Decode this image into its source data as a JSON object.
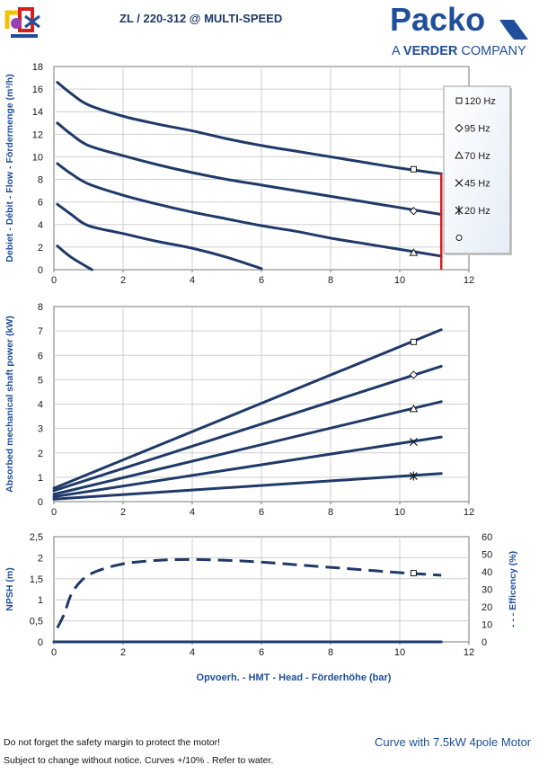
{
  "header": {
    "title": "ZL   / 220-312 @ MULTI-SPEED",
    "brand": "Packo",
    "brand_sub_prefix": "A ",
    "brand_sub_bold": "VERDER",
    "brand_sub_suffix": " COMPANY",
    "brand_color": "#1f4e9a"
  },
  "legend": {
    "items": [
      {
        "label": "120 Hz",
        "marker": "square"
      },
      {
        "label": "95 Hz",
        "marker": "diamond"
      },
      {
        "label": "70 Hz",
        "marker": "triangle"
      },
      {
        "label": "45 Hz",
        "marker": "x"
      },
      {
        "label": "20 Hz",
        "marker": "star"
      },
      {
        "label": "",
        "marker": "circle"
      }
    ]
  },
  "footer": {
    "line1": "Do not forget the safety margin to protect the motor!",
    "line2": "Subject to change without notice. Curves +/10% . Refer to water.",
    "motor": "Curve with 7.5kW 4pole Motor"
  },
  "colors": {
    "curve": "#1f3a68",
    "limit": "#d42020",
    "axis_label": "#1f4e9a",
    "legend_bg": "#e6edf7"
  },
  "chart_data": [
    {
      "type": "line",
      "title": "",
      "xlabel": "",
      "ylabel": "Debiet - Débit - Flow - Fördermenge (m³/h)",
      "xlim": [
        0,
        12
      ],
      "ylim": [
        0,
        18
      ],
      "xticks": [
        "0",
        "2",
        "4",
        "6",
        "8",
        "10",
        "12"
      ],
      "yticks": [
        "0",
        "2",
        "4",
        "6",
        "8",
        "10",
        "12",
        "14",
        "16",
        "18"
      ],
      "limit_line_x": 11.2,
      "grid": true,
      "legend_position": "right",
      "series": [
        {
          "name": "120 Hz",
          "marker": "square",
          "marker_at": [
            10.4,
            8.9
          ],
          "points": [
            [
              0.1,
              16.6
            ],
            [
              0.5,
              15.6
            ],
            [
              1,
              14.6
            ],
            [
              2,
              13.6
            ],
            [
              3,
              12.9
            ],
            [
              4,
              12.3
            ],
            [
              5,
              11.6
            ],
            [
              6,
              11.0
            ],
            [
              7,
              10.5
            ],
            [
              8,
              10.0
            ],
            [
              9,
              9.5
            ],
            [
              10,
              9.0
            ],
            [
              11.2,
              8.5
            ]
          ]
        },
        {
          "name": "95 Hz",
          "marker": "diamond",
          "marker_at": [
            10.4,
            5.2
          ],
          "points": [
            [
              0.1,
              13.0
            ],
            [
              0.5,
              12.0
            ],
            [
              1,
              11.0
            ],
            [
              2,
              10.1
            ],
            [
              3,
              9.3
            ],
            [
              4,
              8.6
            ],
            [
              5,
              8.0
            ],
            [
              6,
              7.5
            ],
            [
              7,
              7.0
            ],
            [
              8,
              6.5
            ],
            [
              9,
              6.0
            ],
            [
              10,
              5.5
            ],
            [
              11.2,
              4.9
            ]
          ]
        },
        {
          "name": "70 Hz",
          "marker": "triangle",
          "marker_at": [
            10.4,
            1.5
          ],
          "points": [
            [
              0.1,
              9.4
            ],
            [
              0.5,
              8.5
            ],
            [
              1,
              7.6
            ],
            [
              2,
              6.6
            ],
            [
              3,
              5.8
            ],
            [
              4,
              5.1
            ],
            [
              5,
              4.5
            ],
            [
              6,
              3.9
            ],
            [
              7,
              3.4
            ],
            [
              8,
              2.8
            ],
            [
              9,
              2.3
            ],
            [
              10,
              1.8
            ],
            [
              11.2,
              1.2
            ]
          ]
        },
        {
          "name": "45 Hz",
          "marker": "x",
          "points": [
            [
              0.1,
              5.8
            ],
            [
              0.5,
              4.9
            ],
            [
              1,
              3.9
            ],
            [
              2,
              3.2
            ],
            [
              3,
              2.5
            ],
            [
              4,
              1.9
            ],
            [
              5,
              1.1
            ],
            [
              6,
              0.1
            ]
          ]
        },
        {
          "name": "20 Hz",
          "marker": "star",
          "points": [
            [
              0.1,
              2.1
            ],
            [
              0.5,
              1.1
            ],
            [
              1.1,
              0.0
            ]
          ]
        }
      ]
    },
    {
      "type": "line",
      "title": "",
      "xlabel": "",
      "ylabel": "Absorbed mechanical shaft power (kW)",
      "xlim": [
        0,
        12
      ],
      "ylim": [
        0,
        8
      ],
      "xticks": [
        "0",
        "2",
        "4",
        "6",
        "8",
        "10",
        "12"
      ],
      "yticks": [
        "0",
        "1",
        "2",
        "3",
        "4",
        "5",
        "6",
        "7",
        "8"
      ],
      "grid": true,
      "series": [
        {
          "name": "120 Hz",
          "marker": "square",
          "marker_at": [
            10.4,
            6.55
          ],
          "points": [
            [
              0,
              0.55
            ],
            [
              11.2,
              7.05
            ]
          ]
        },
        {
          "name": "95 Hz",
          "marker": "diamond",
          "marker_at": [
            10.4,
            5.2
          ],
          "points": [
            [
              0,
              0.45
            ],
            [
              11.2,
              5.55
            ]
          ]
        },
        {
          "name": "70 Hz",
          "marker": "triangle",
          "marker_at": [
            10.4,
            3.8
          ],
          "points": [
            [
              0,
              0.3
            ],
            [
              11.2,
              4.1
            ]
          ]
        },
        {
          "name": "45 Hz",
          "marker": "x",
          "marker_at": [
            10.4,
            2.45
          ],
          "points": [
            [
              0,
              0.2
            ],
            [
              11.2,
              2.65
            ]
          ]
        },
        {
          "name": "20 Hz",
          "marker": "star",
          "marker_at": [
            10.4,
            1.05
          ],
          "points": [
            [
              0,
              0.1
            ],
            [
              11.2,
              1.15
            ]
          ]
        }
      ]
    },
    {
      "type": "line",
      "title": "",
      "xlabel": "Opvoerh. - HMT - Head - Förderhöhe (bar)",
      "ylabel": "NPSH (m)",
      "ylabel_right": "- - -  Efficency  (%)",
      "xlim": [
        0,
        12
      ],
      "ylim": [
        0,
        2.5
      ],
      "ylim_right": [
        0,
        60
      ],
      "xticks": [
        "0",
        "2",
        "4",
        "6",
        "8",
        "10",
        "12"
      ],
      "yticks": [
        "0",
        "0,5",
        "1",
        "1,5",
        "2",
        "2,5"
      ],
      "yticks_right": [
        "0",
        "10",
        "20",
        "30",
        "40",
        "50",
        "60"
      ],
      "grid": true,
      "series": [
        {
          "name": "",
          "axis": "left",
          "dashed": false,
          "points": [
            [
              0,
              0.0
            ],
            [
              11.2,
              0.0
            ]
          ]
        },
        {
          "name": "",
          "axis": "right",
          "dashed": true,
          "marker": "square",
          "marker_at": [
            10.4,
            39.2
          ],
          "points": [
            [
              0.1,
              8
            ],
            [
              0.3,
              16
            ],
            [
              0.5,
              27
            ],
            [
              0.8,
              35
            ],
            [
              1.2,
              40
            ],
            [
              2,
              44.5
            ],
            [
              3,
              46.5
            ],
            [
              4,
              47
            ],
            [
              5,
              46.5
            ],
            [
              6,
              45.5
            ],
            [
              7,
              44
            ],
            [
              8,
              42.5
            ],
            [
              9,
              41
            ],
            [
              10,
              39.5
            ],
            [
              11.2,
              38
            ]
          ]
        }
      ]
    }
  ]
}
